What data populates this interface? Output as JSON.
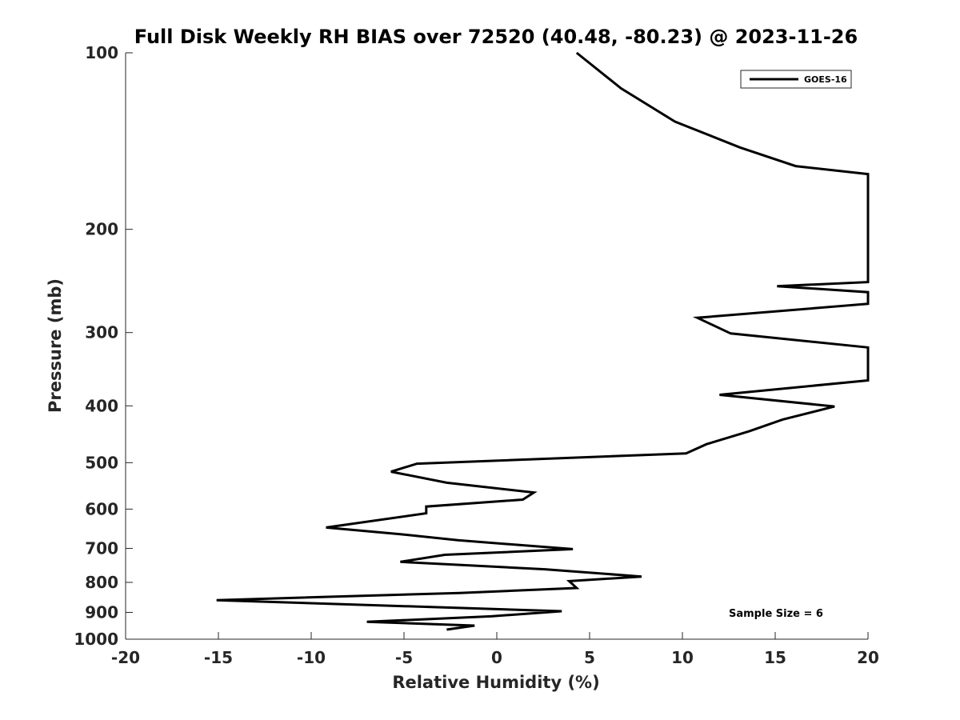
{
  "chart_data": {
    "type": "line",
    "title": "Full Disk Weekly RH BIAS over 72520 (40.48, -80.23) @ 2023-11-26",
    "xlabel": "Relative Humidity (%)",
    "ylabel": "Pressure (mb)",
    "xlim": [
      -20,
      20
    ],
    "ylim": [
      100,
      1000
    ],
    "yscale": "log",
    "y_reversed": true,
    "xticks": [
      -20,
      -15,
      -10,
      -5,
      0,
      5,
      10,
      15,
      20
    ],
    "xtick_labels": [
      "-20",
      "-15",
      "-10",
      "-5",
      "0",
      "5",
      "10",
      "15",
      "20"
    ],
    "yticks": [
      100,
      200,
      300,
      400,
      500,
      600,
      700,
      800,
      900,
      1000
    ],
    "ytick_labels": [
      "100",
      "200",
      "300",
      "400",
      "500",
      "600",
      "700",
      "800",
      "900",
      "1000"
    ],
    "grid": false,
    "legend_position": "top-right",
    "annotation": "Sample Size = 6",
    "series": [
      {
        "name": "GOES-16",
        "color": "#000000",
        "points": [
          [
            4.3,
            100
          ],
          [
            6.7,
            115
          ],
          [
            9.6,
            131
          ],
          [
            13.1,
            145
          ],
          [
            16.1,
            156
          ],
          [
            20.0,
            161
          ],
          [
            20.0,
            246
          ],
          [
            15.1,
            250
          ],
          [
            20.0,
            256
          ],
          [
            20.0,
            268
          ],
          [
            10.8,
            283
          ],
          [
            12.6,
            301
          ],
          [
            20.0,
            318
          ],
          [
            20.0,
            362
          ],
          [
            12.0,
            383
          ],
          [
            18.2,
            401
          ],
          [
            15.4,
            422
          ],
          [
            13.6,
            442
          ],
          [
            11.3,
            465
          ],
          [
            10.2,
            482
          ],
          [
            -4.3,
            502
          ],
          [
            -5.7,
            518
          ],
          [
            -2.7,
            541
          ],
          [
            2.0,
            562
          ],
          [
            1.4,
            578
          ],
          [
            -3.8,
            594
          ],
          [
            -3.8,
            610
          ],
          [
            -9.2,
            645
          ],
          [
            -5.2,
            662
          ],
          [
            -2.1,
            678
          ],
          [
            4.1,
            702
          ],
          [
            -2.8,
            718
          ],
          [
            -5.2,
            738
          ],
          [
            2.6,
            760
          ],
          [
            7.8,
            782
          ],
          [
            3.9,
            796
          ],
          [
            4.3,
            818
          ],
          [
            -2.0,
            834
          ],
          [
            -15.1,
            858
          ],
          [
            3.5,
            896
          ],
          [
            -0.3,
            914
          ],
          [
            -7.0,
            934
          ],
          [
            -1.2,
            948
          ],
          [
            -2.7,
            963
          ]
        ]
      }
    ]
  }
}
